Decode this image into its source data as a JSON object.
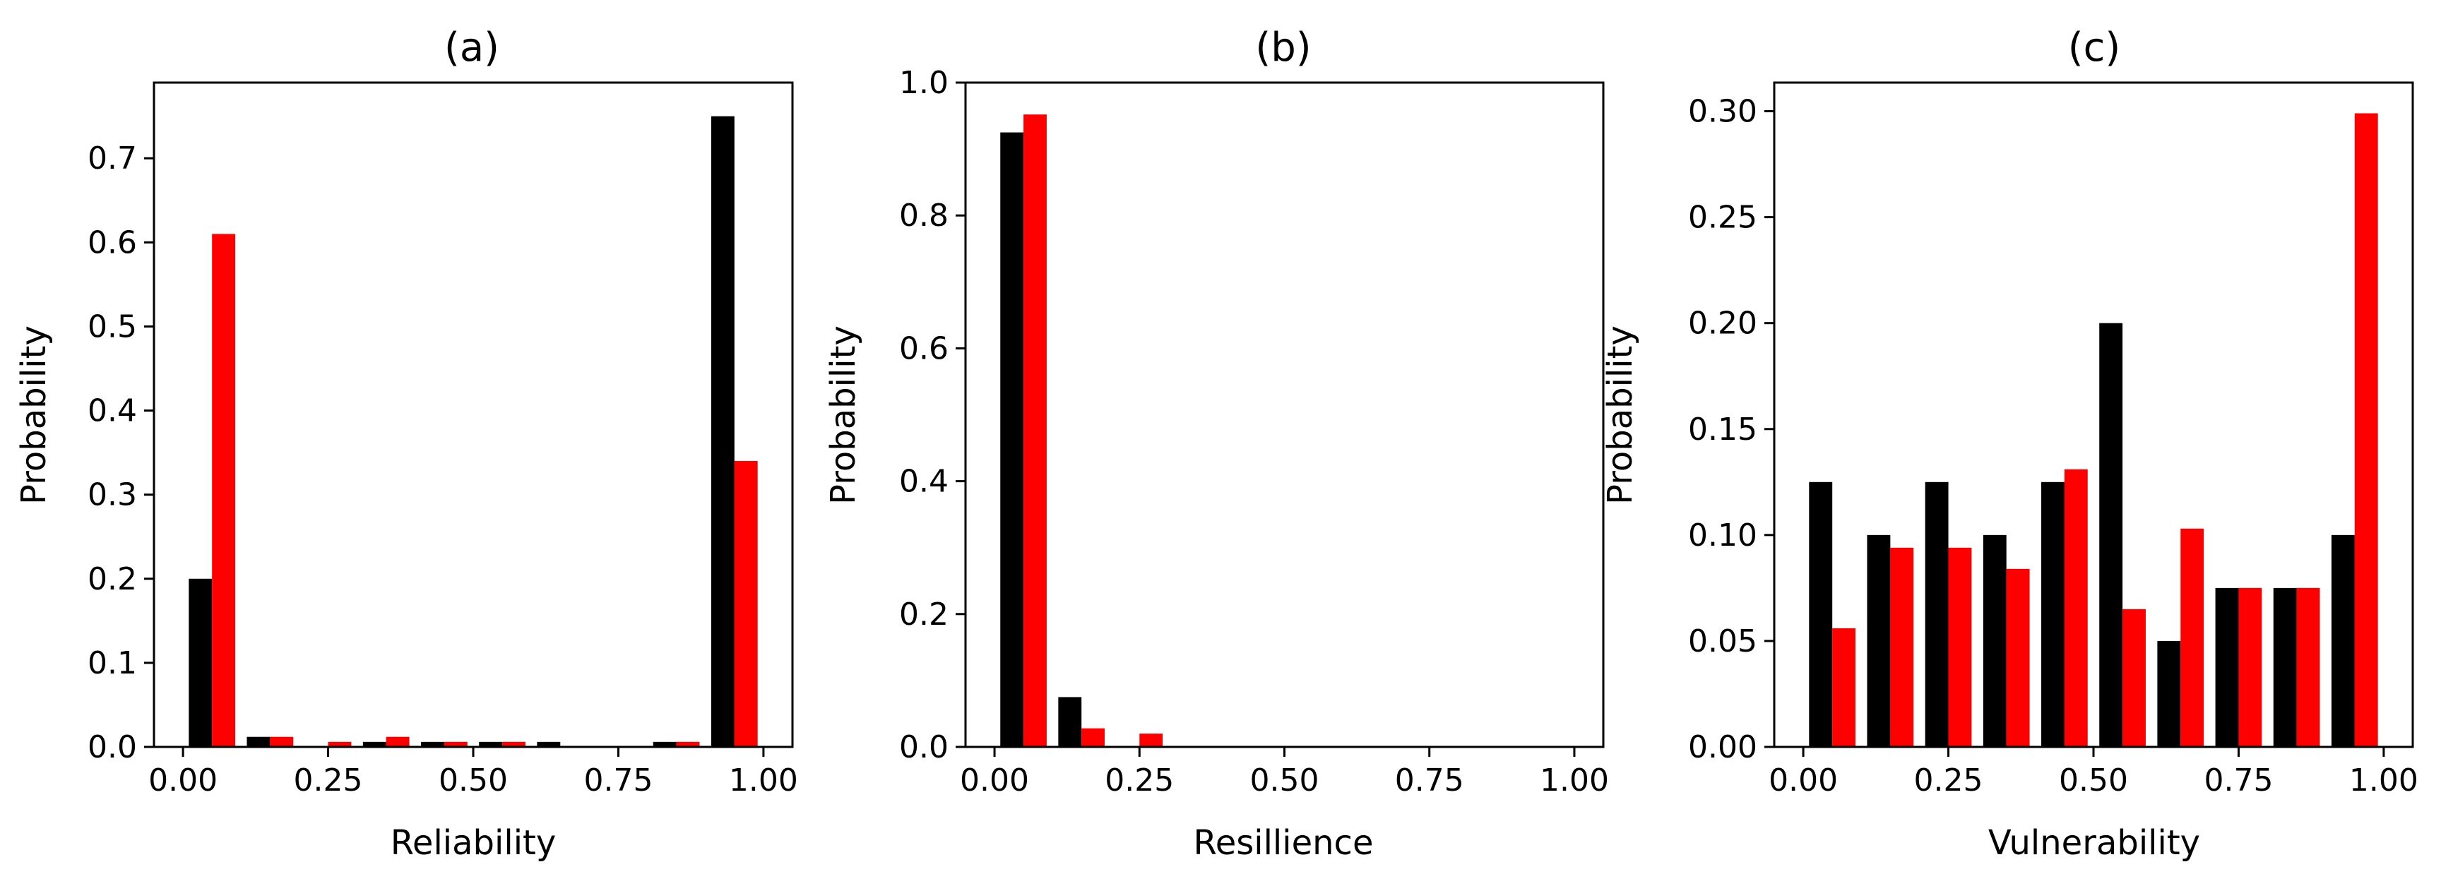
{
  "colors": {
    "series_a": "#000000",
    "series_b": "#ff0000",
    "axes": "#000000"
  },
  "chart_data": [
    {
      "type": "bar",
      "title": "(a)",
      "xlabel": "Reliability",
      "ylabel": "Probability",
      "xlim": [
        -0.05,
        1.05
      ],
      "ylim": [
        0,
        0.79
      ],
      "xticks": [
        0,
        0.25,
        0.5,
        0.75,
        1
      ],
      "xtick_labels": [
        "0.00",
        "0.25",
        "0.50",
        "0.75",
        "1.00"
      ],
      "yticks": [
        0,
        0.1,
        0.2,
        0.3,
        0.4,
        0.5,
        0.6,
        0.7
      ],
      "ytick_labels": [
        "0.0",
        "0.1",
        "0.2",
        "0.3",
        "0.4",
        "0.5",
        "0.6",
        "0.7"
      ],
      "bin_centers": [
        0.05,
        0.15,
        0.25,
        0.35,
        0.45,
        0.55,
        0.65,
        0.75,
        0.85,
        0.95
      ],
      "series": [
        {
          "color": "#000000",
          "values": [
            0.2,
            0.012,
            0.0,
            0.006,
            0.006,
            0.006,
            0.006,
            0.0,
            0.006,
            0.75
          ]
        },
        {
          "color": "#ff0000",
          "values": [
            0.61,
            0.012,
            0.006,
            0.012,
            0.006,
            0.006,
            0.0,
            0.0,
            0.006,
            0.34
          ]
        }
      ]
    },
    {
      "type": "bar",
      "title": "(b)",
      "xlabel": "Resillience",
      "ylabel": "Probability",
      "xlim": [
        -0.05,
        1.05
      ],
      "ylim": [
        0,
        1.0
      ],
      "xticks": [
        0,
        0.25,
        0.5,
        0.75,
        1
      ],
      "xtick_labels": [
        "0.00",
        "0.25",
        "0.50",
        "0.75",
        "1.00"
      ],
      "yticks": [
        0,
        0.2,
        0.4,
        0.6,
        0.8,
        1.0
      ],
      "ytick_labels": [
        "0.0",
        "0.2",
        "0.4",
        "0.6",
        "0.8",
        "1.0"
      ],
      "bin_centers": [
        0.05,
        0.15,
        0.25,
        0.35,
        0.45,
        0.55,
        0.65,
        0.75,
        0.85,
        0.95
      ],
      "series": [
        {
          "color": "#000000",
          "values": [
            0.925,
            0.075,
            0.0,
            0.0,
            0.0,
            0.0,
            0.0,
            0.0,
            0.0,
            0.0
          ]
        },
        {
          "color": "#ff0000",
          "values": [
            0.952,
            0.028,
            0.02,
            0.0,
            0.0,
            0.0,
            0.0,
            0.0,
            0.0,
            0.0
          ]
        }
      ]
    },
    {
      "type": "bar",
      "title": "(c)",
      "xlabel": "Vulnerability",
      "ylabel": "Probability",
      "xlim": [
        -0.05,
        1.05
      ],
      "ylim": [
        0,
        0.3135
      ],
      "xticks": [
        0,
        0.25,
        0.5,
        0.75,
        1
      ],
      "xtick_labels": [
        "0.00",
        "0.25",
        "0.50",
        "0.75",
        "1.00"
      ],
      "yticks": [
        0,
        0.05,
        0.1,
        0.15,
        0.2,
        0.25,
        0.3
      ],
      "ytick_labels": [
        "0.00",
        "0.05",
        "0.10",
        "0.15",
        "0.20",
        "0.25",
        "0.30"
      ],
      "bin_centers": [
        0.05,
        0.15,
        0.25,
        0.35,
        0.45,
        0.55,
        0.65,
        0.75,
        0.85,
        0.95
      ],
      "series": [
        {
          "color": "#000000",
          "values": [
            0.125,
            0.1,
            0.125,
            0.1,
            0.125,
            0.2,
            0.05,
            0.075,
            0.075,
            0.1
          ]
        },
        {
          "color": "#ff0000",
          "values": [
            0.056,
            0.094,
            0.094,
            0.084,
            0.131,
            0.065,
            0.103,
            0.075,
            0.075,
            0.299
          ]
        }
      ]
    }
  ]
}
